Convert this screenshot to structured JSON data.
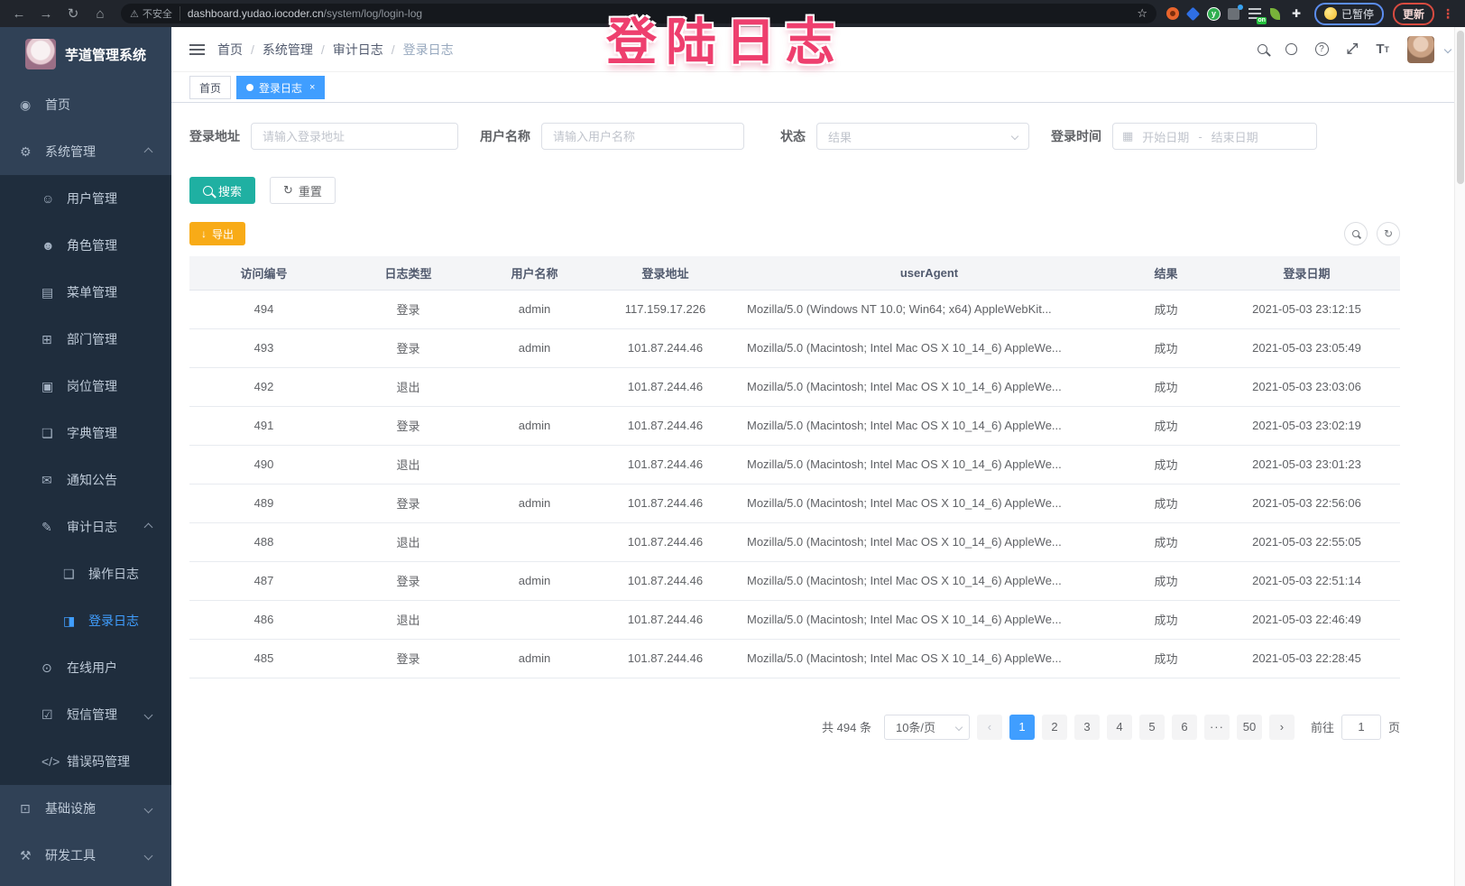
{
  "browser": {
    "security_label": "不安全",
    "url_host": "dashboard.yudao.iocoder.cn",
    "url_path": "/system/log/login-log",
    "extension_on_badge": "on",
    "ext_green_letter": "y",
    "paused_badge": "已暂停",
    "update_button": "更新"
  },
  "overlay": {
    "text": "登陆日志"
  },
  "sidebar": {
    "title": "芋道管理系统",
    "items": [
      {
        "name": "home",
        "label": "首页",
        "icon": "guide-icon",
        "level": 1
      },
      {
        "name": "system-management",
        "label": "系统管理",
        "icon": "gear-icon",
        "level": 1,
        "arrow": "up"
      },
      {
        "name": "user-management",
        "label": "用户管理",
        "icon": "user-icon",
        "level": 2
      },
      {
        "name": "role-management",
        "label": "角色管理",
        "icon": "role-icon",
        "level": 2
      },
      {
        "name": "menu-management",
        "label": "菜单管理",
        "icon": "menu-icon",
        "level": 2
      },
      {
        "name": "dept-management",
        "label": "部门管理",
        "icon": "dept-icon",
        "level": 2
      },
      {
        "name": "post-management",
        "label": "岗位管理",
        "icon": "post-icon",
        "level": 2
      },
      {
        "name": "dict-management",
        "label": "字典管理",
        "icon": "dict-icon",
        "level": 2
      },
      {
        "name": "notice",
        "label": "通知公告",
        "icon": "notice-icon",
        "level": 2
      },
      {
        "name": "audit-log",
        "label": "审计日志",
        "icon": "audit-log-icon",
        "level": 2,
        "arrow": "up"
      },
      {
        "name": "operation-log",
        "label": "操作日志",
        "icon": "operation-log-icon",
        "level": 3
      },
      {
        "name": "login-log",
        "label": "登录日志",
        "icon": "login-log-icon",
        "level": 3,
        "active": true
      },
      {
        "name": "online-user",
        "label": "在线用户",
        "icon": "online-user-icon",
        "level": 2
      },
      {
        "name": "sms-management",
        "label": "短信管理",
        "icon": "sms-icon",
        "level": 2,
        "arrow": "down"
      },
      {
        "name": "error-code-management",
        "label": "错误码管理",
        "icon": "error-code-icon",
        "level": 2
      },
      {
        "name": "infrastructure",
        "label": "基础设施",
        "icon": "infra-icon",
        "level": 1,
        "arrow": "down"
      },
      {
        "name": "dev-tools",
        "label": "研发工具",
        "icon": "devtool-icon",
        "level": 1,
        "arrow": "down"
      }
    ]
  },
  "breadcrumb": [
    "首页",
    "系统管理",
    "审计日志",
    "登录日志"
  ],
  "tabs": [
    {
      "label": "首页",
      "active": false
    },
    {
      "label": "登录日志",
      "active": true
    }
  ],
  "filters": {
    "login_address_label": "登录地址",
    "login_address_placeholder": "请输入登录地址",
    "username_label": "用户名称",
    "username_placeholder": "请输入用户名称",
    "status_label": "状态",
    "status_placeholder": "结果",
    "login_time_label": "登录时间",
    "date_start_placeholder": "开始日期",
    "date_separator": "-",
    "date_end_placeholder": "结束日期",
    "search_button": "搜索",
    "reset_button": "重置"
  },
  "toolbar": {
    "export_button": "导出"
  },
  "table": {
    "columns": [
      "访问编号",
      "日志类型",
      "用户名称",
      "登录地址",
      "userAgent",
      "结果",
      "登录日期"
    ],
    "rows": [
      [
        "494",
        "登录",
        "admin",
        "117.159.17.226",
        "Mozilla/5.0 (Windows NT 10.0; Win64; x64) AppleWebKit...",
        "成功",
        "2021-05-03 23:12:15"
      ],
      [
        "493",
        "登录",
        "admin",
        "101.87.244.46",
        "Mozilla/5.0 (Macintosh; Intel Mac OS X 10_14_6) AppleWe...",
        "成功",
        "2021-05-03 23:05:49"
      ],
      [
        "492",
        "退出",
        "",
        "101.87.244.46",
        "Mozilla/5.0 (Macintosh; Intel Mac OS X 10_14_6) AppleWe...",
        "成功",
        "2021-05-03 23:03:06"
      ],
      [
        "491",
        "登录",
        "admin",
        "101.87.244.46",
        "Mozilla/5.0 (Macintosh; Intel Mac OS X 10_14_6) AppleWe...",
        "成功",
        "2021-05-03 23:02:19"
      ],
      [
        "490",
        "退出",
        "",
        "101.87.244.46",
        "Mozilla/5.0 (Macintosh; Intel Mac OS X 10_14_6) AppleWe...",
        "成功",
        "2021-05-03 23:01:23"
      ],
      [
        "489",
        "登录",
        "admin",
        "101.87.244.46",
        "Mozilla/5.0 (Macintosh; Intel Mac OS X 10_14_6) AppleWe...",
        "成功",
        "2021-05-03 22:56:06"
      ],
      [
        "488",
        "退出",
        "",
        "101.87.244.46",
        "Mozilla/5.0 (Macintosh; Intel Mac OS X 10_14_6) AppleWe...",
        "成功",
        "2021-05-03 22:55:05"
      ],
      [
        "487",
        "登录",
        "admin",
        "101.87.244.46",
        "Mozilla/5.0 (Macintosh; Intel Mac OS X 10_14_6) AppleWe...",
        "成功",
        "2021-05-03 22:51:14"
      ],
      [
        "486",
        "退出",
        "",
        "101.87.244.46",
        "Mozilla/5.0 (Macintosh; Intel Mac OS X 10_14_6) AppleWe...",
        "成功",
        "2021-05-03 22:46:49"
      ],
      [
        "485",
        "登录",
        "admin",
        "101.87.244.46",
        "Mozilla/5.0 (Macintosh; Intel Mac OS X 10_14_6) AppleWe...",
        "成功",
        "2021-05-03 22:28:45"
      ]
    ]
  },
  "pagination": {
    "total_label": "共 494 条",
    "page_size_label": "10条/页",
    "pages": [
      "1",
      "2",
      "3",
      "4",
      "5",
      "6",
      "···",
      "50"
    ],
    "active_page": "1",
    "goto_label": "前往",
    "goto_value": "1",
    "goto_suffix_label": "页"
  },
  "icon_glyphs": {
    "guide-icon": "◉",
    "gear-icon": "⚙",
    "user-icon": "☺",
    "role-icon": "☻",
    "menu-icon": "▤",
    "dept-icon": "⊞",
    "post-icon": "▣",
    "dict-icon": "❏",
    "notice-icon": "✉",
    "audit-log-icon": "✎",
    "operation-log-icon": "❑",
    "login-log-icon": "◨",
    "online-user-icon": "⊙",
    "sms-icon": "☑",
    "error-code-icon": "</>",
    "infra-icon": "⊡",
    "devtool-icon": "⚒"
  }
}
